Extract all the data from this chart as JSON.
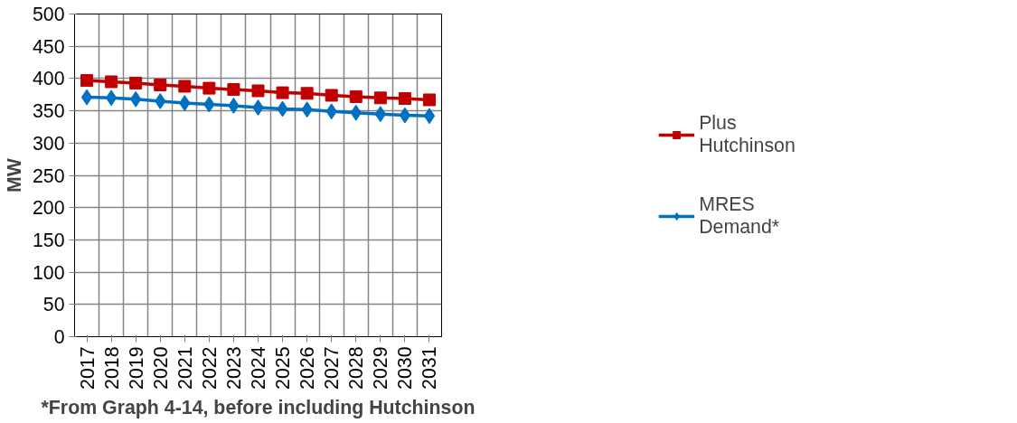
{
  "chart_data": {
    "type": "line",
    "ylabel": "MW",
    "xlabel": "*From Graph 4-14, before including Hutchinson",
    "categories": [
      "2017",
      "2018",
      "2019",
      "2020",
      "2021",
      "2022",
      "2023",
      "2024",
      "2025",
      "2026",
      "2027",
      "2028",
      "2029",
      "2030",
      "2031"
    ],
    "series": [
      {
        "name": "Plus Hutchinson",
        "color": "#c00000",
        "marker": "square",
        "values": [
          397,
          395,
          393,
          390,
          388,
          385,
          383,
          381,
          378,
          377,
          374,
          372,
          370,
          369,
          367
        ]
      },
      {
        "name": "MRES Demand*",
        "color": "#0070c0",
        "marker": "diamond",
        "values": [
          371,
          370,
          368,
          365,
          362,
          360,
          358,
          355,
          353,
          352,
          349,
          347,
          345,
          343,
          342
        ]
      }
    ],
    "ylim": [
      0,
      500
    ],
    "yticks": [
      0,
      50,
      100,
      150,
      200,
      250,
      300,
      350,
      400,
      450,
      500
    ],
    "grid": true,
    "legend": "right",
    "line_style": "solid"
  }
}
